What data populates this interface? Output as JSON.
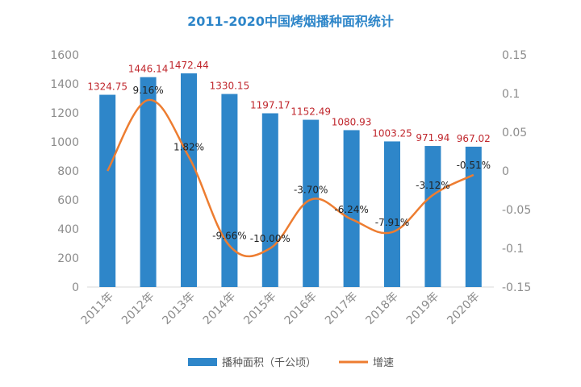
{
  "chart_data": {
    "type": "bar",
    "title": "2011-2020中国烤烟播种面积统计",
    "categories": [
      "2011年",
      "2012年",
      "2013年",
      "2014年",
      "2015年",
      "2016年",
      "2017年",
      "2018年",
      "2019年",
      "2020年"
    ],
    "series": [
      {
        "name": "播种面积（千公顷）",
        "type": "bar",
        "axis": "left",
        "color": "#2e86c9",
        "values": [
          1324.75,
          1446.14,
          1472.44,
          1330.15,
          1197.17,
          1152.49,
          1080.93,
          1003.25,
          971.94,
          967.02
        ],
        "labels": [
          "1324.75",
          "1446.14",
          "1472.44",
          "1330.15",
          "1197.17",
          "1152.49",
          "1080.93",
          "1003.25",
          "971.94",
          "967.02"
        ]
      },
      {
        "name": "增速",
        "type": "line",
        "axis": "right",
        "color": "#ed7d31",
        "values": [
          0,
          0.0916,
          0.0182,
          -0.0966,
          -0.1,
          -0.037,
          -0.0624,
          -0.0791,
          -0.0312,
          -0.0051
        ],
        "labels": [
          "",
          "9.16%",
          "1.82%",
          "-9.66%",
          "-10.00%",
          "-3.70%",
          "-6.24%",
          "-7.91%",
          "-3.12%",
          "-0.51%"
        ]
      }
    ],
    "ylim_left": [
      0,
      1600
    ],
    "yticks_left": [
      "0",
      "200",
      "400",
      "600",
      "800",
      "1000",
      "1200",
      "1400",
      "1600"
    ],
    "ylim_right": [
      -0.15,
      0.15
    ],
    "yticks_right": [
      "-0.15",
      "-0.1",
      "-0.05",
      "0",
      "0.05",
      "0.1",
      "0.15"
    ],
    "grid": false,
    "legend": "bottom"
  }
}
